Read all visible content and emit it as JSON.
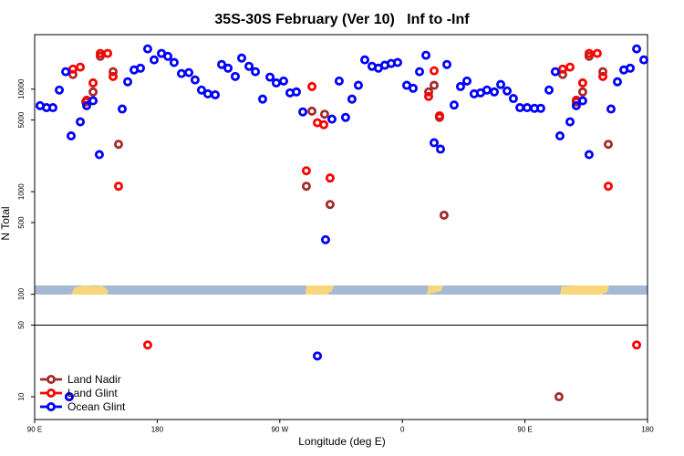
{
  "chart_data": {
    "type": "scatter",
    "title": "35S-30S February (Ver 10)   Inf to -Inf",
    "xlabel": "Longitude (deg E)",
    "ylabel": "N Total",
    "log_y": true,
    "legend": "bottomleft",
    "hline": 50,
    "xlim": [
      90,
      540
    ],
    "xticks": [
      {
        "value": 90,
        "label": "90 E"
      },
      180,
      {
        "value": 270,
        "label": "90 W"
      },
      {
        "value": 360,
        "label": "0"
      },
      {
        "value": 450,
        "label": "90 E"
      },
      {
        "value": 540,
        "label": "180"
      }
    ],
    "ylim": [
      6,
      34000
    ],
    "yticks": [
      10,
      50,
      100,
      500,
      1000,
      5000,
      10000
    ],
    "series": [
      {
        "name": "Land Nadir",
        "color": "#a52a2a",
        "x": [
          115.4,
          118.1,
          127.5,
          132.9,
          138.2,
          147.6,
          151.6,
          289.5,
          293.6,
          302.9,
          306.9,
          379.3,
          383.3,
          387.3,
          390.6,
          475.0,
          477.7,
          487.7,
          492.4,
          497.1,
          507.2,
          511.2
        ],
        "values": [
          10,
          13900,
          7500,
          9400,
          20900,
          14800,
          2900,
          1130,
          6100,
          5700,
          750,
          9400,
          10900,
          5300,
          590,
          10,
          13900,
          7500,
          9400,
          20900,
          14800,
          2900
        ]
      },
      {
        "name": "Land Glint",
        "color": "#ff0000",
        "x": [
          118.1,
          123.5,
          128.2,
          132.9,
          138.2,
          143.6,
          147.6,
          151.6,
          173.0,
          289.5,
          293.6,
          297.6,
          302.3,
          306.9,
          379.3,
          383.3,
          387.3,
          477.7,
          483.1,
          487.7,
          492.4,
          497.1,
          503.1,
          507.2,
          511.2,
          532.0
        ],
        "values": [
          15700,
          16400,
          7800,
          11500,
          22300,
          22300,
          13300,
          1130,
          32,
          1600,
          10600,
          4700,
          4500,
          1360,
          8500,
          15100,
          5500,
          15700,
          16400,
          7800,
          11500,
          22300,
          22300,
          13300,
          1130,
          32
        ]
      },
      {
        "name": "Ocean Glint",
        "color": "#0000ff",
        "x": [
          94.0,
          98.7,
          103.4,
          108.1,
          112.8,
          115.4,
          116.8,
          123.5,
          128.2,
          132.9,
          137.5,
          154.3,
          158.3,
          163.0,
          167.7,
          173.0,
          177.7,
          183.1,
          187.8,
          192.4,
          197.8,
          203.2,
          207.8,
          212.5,
          217.2,
          222.6,
          227.3,
          232.0,
          237.3,
          242.0,
          247.4,
          252.1,
          257.4,
          262.8,
          267.4,
          272.8,
          277.5,
          282.2,
          286.9,
          297.6,
          303.6,
          308.3,
          313.6,
          318.3,
          323.0,
          327.7,
          332.4,
          337.7,
          342.4,
          347.1,
          351.8,
          356.5,
          363.2,
          367.9,
          372.6,
          377.3,
          383.3,
          388.0,
          392.7,
          398.0,
          402.7,
          407.4,
          412.7,
          417.4,
          422.1,
          427.5,
          432.2,
          436.9,
          441.5,
          446.3,
          451.6,
          457.0,
          461.6,
          467.7,
          472.3,
          475.7,
          483.1,
          487.7,
          492.4,
          497.1,
          513.2,
          517.9,
          522.6,
          527.3,
          532.0,
          537.3
        ],
        "values": [
          6900,
          6600,
          6600,
          9800,
          14800,
          10,
          3500,
          4800,
          6900,
          7700,
          2300,
          6400,
          11800,
          15400,
          16000,
          24700,
          19300,
          22300,
          20900,
          18200,
          14200,
          14500,
          12300,
          9800,
          9000,
          8800,
          17400,
          16000,
          13300,
          20100,
          16700,
          14800,
          8000,
          13100,
          11500,
          12000,
          9200,
          9400,
          6000,
          25,
          340,
          5100,
          12000,
          5300,
          8000,
          10900,
          19300,
          16700,
          16000,
          17100,
          17800,
          18200,
          10900,
          10200,
          14800,
          21400,
          3000,
          2600,
          17400,
          7000,
          10600,
          12000,
          9000,
          9200,
          9800,
          9400,
          11100,
          9600,
          8100,
          6600,
          6600,
          6500,
          6500,
          9800,
          14800,
          3500,
          4800,
          6900,
          7700,
          2300,
          6400,
          11800,
          15400,
          16000,
          24700,
          19300
        ]
      }
    ]
  }
}
